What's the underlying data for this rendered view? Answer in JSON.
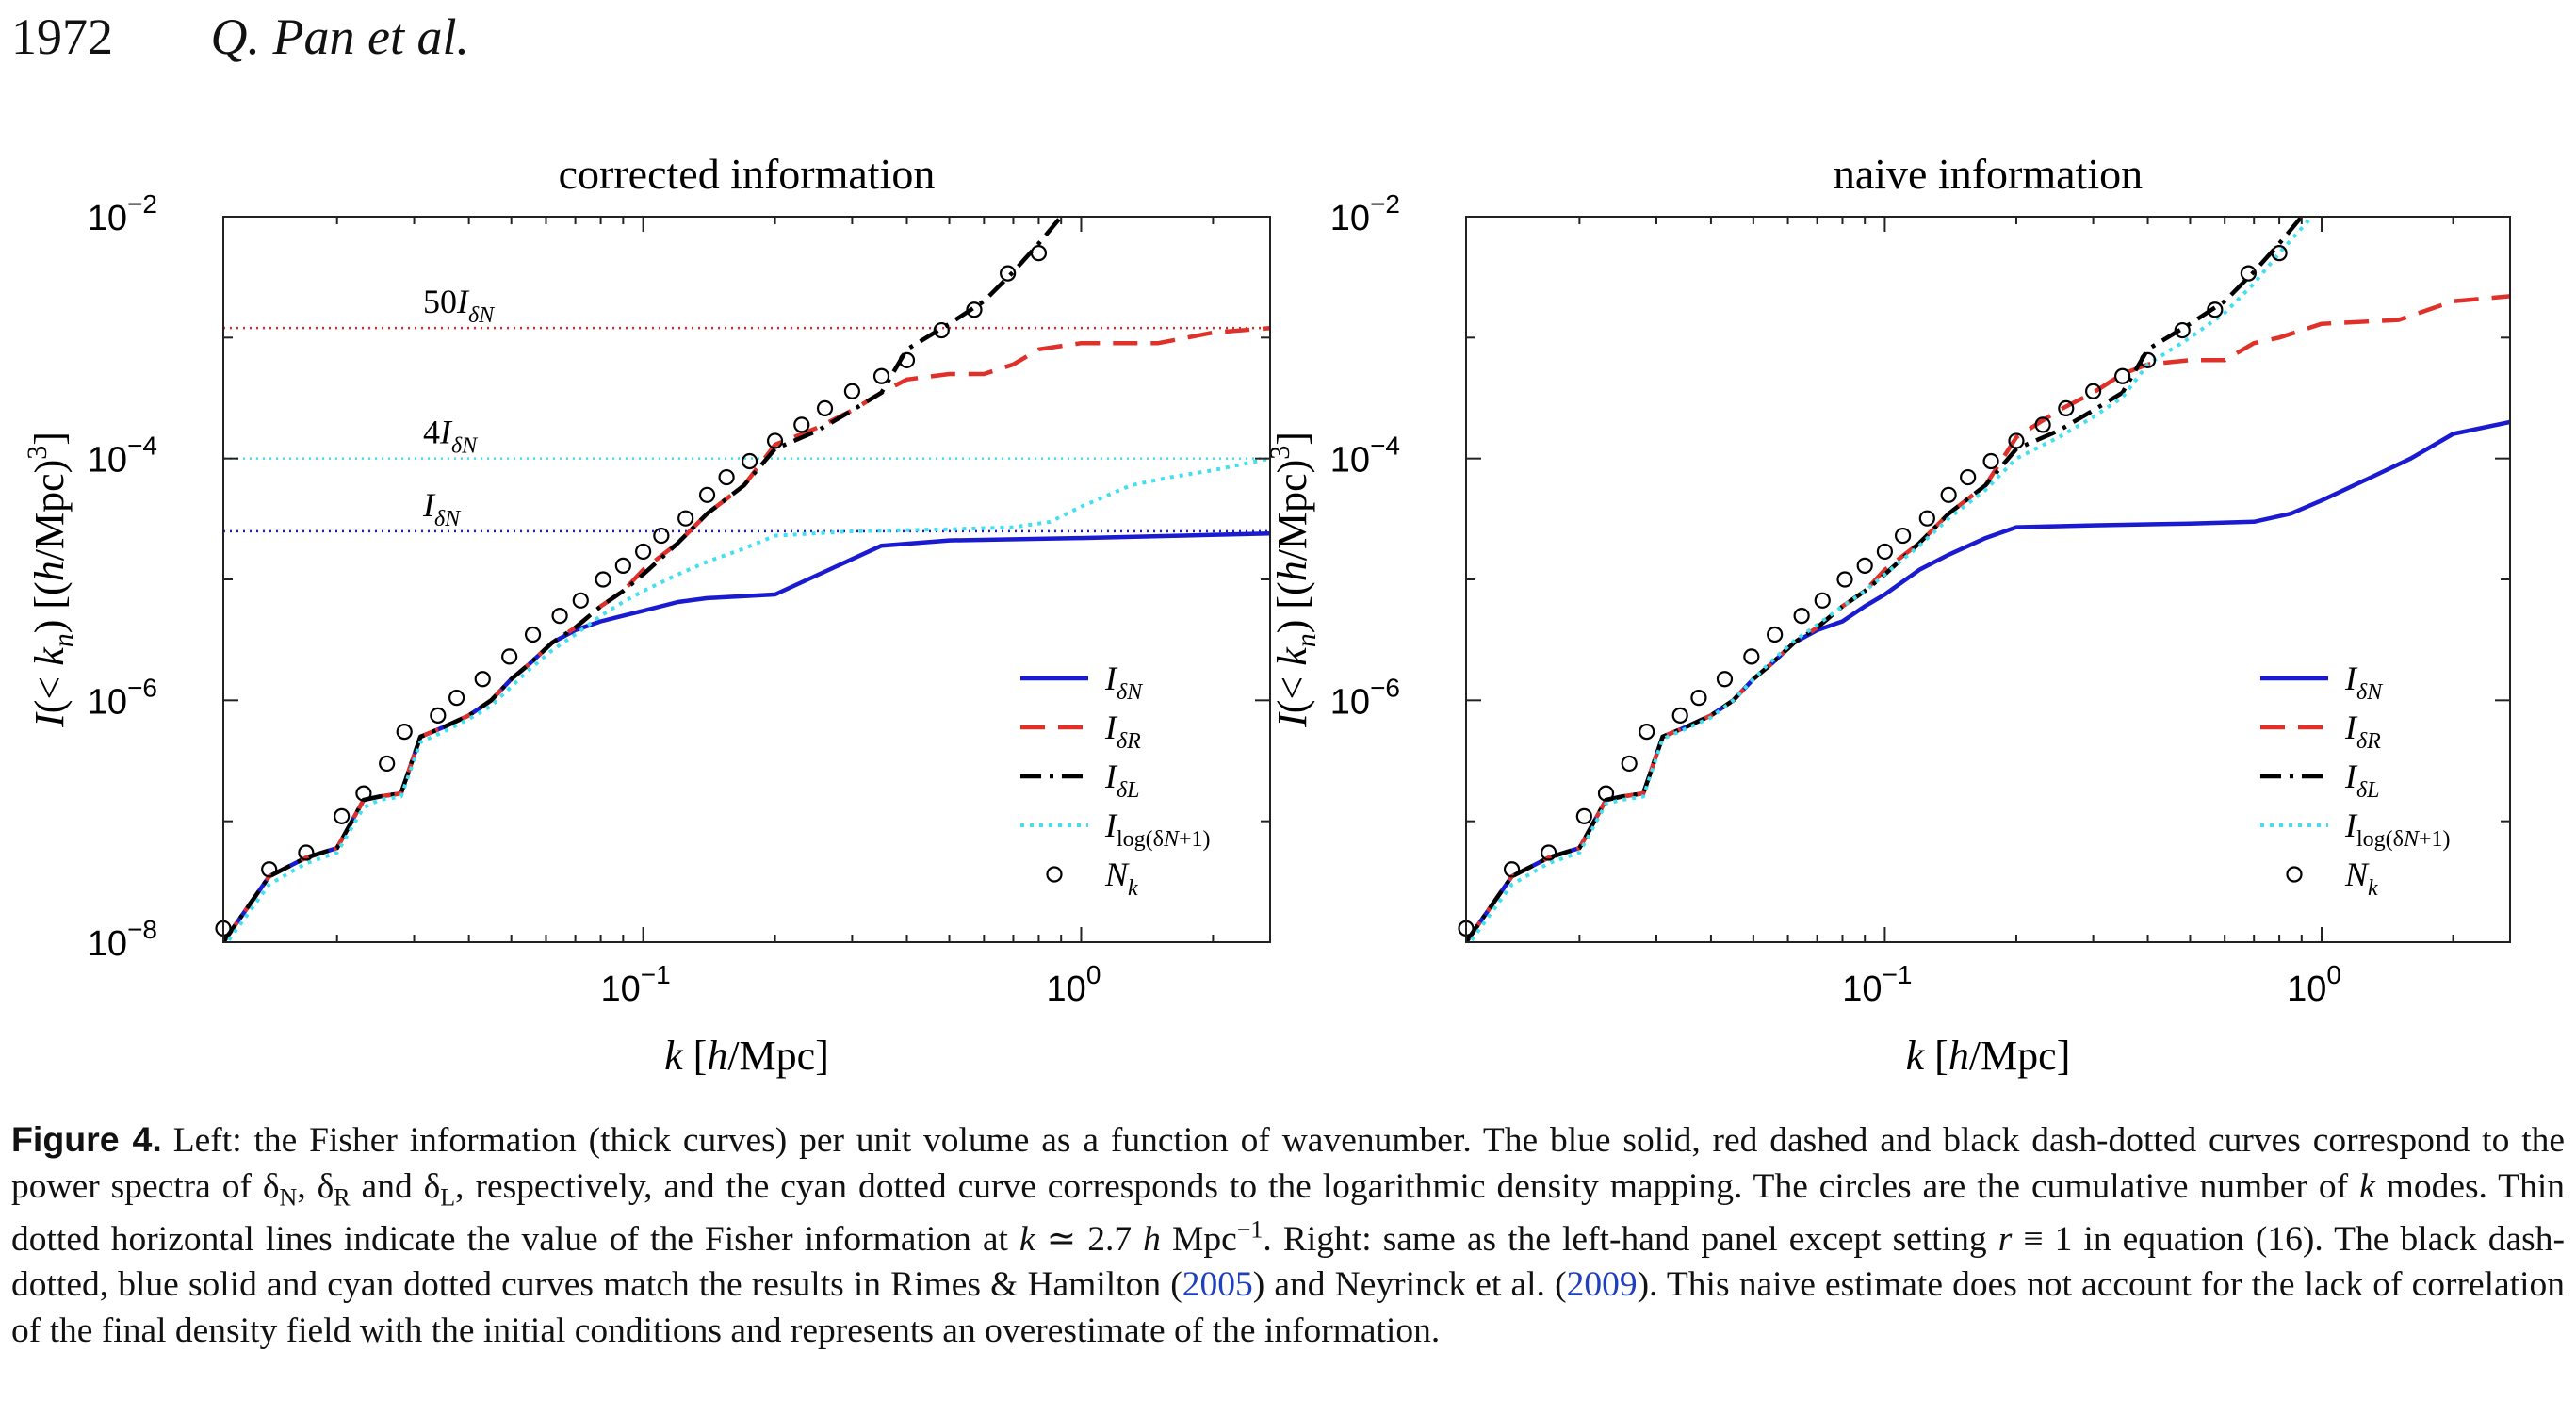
{
  "header": {
    "page_number": "1972",
    "running_head": "Q. Pan et al."
  },
  "figure": {
    "label": "Figure 4.",
    "caption_parts": [
      {
        "t": "Left: the Fisher information (thick curves) per unit volume as a function of wavenumber. The blue solid, red dashed and black dash-dotted curves correspond to the power spectra of δ"
      },
      {
        "t": "N",
        "sub": true
      },
      {
        "t": ", δ"
      },
      {
        "t": "R",
        "sub": true
      },
      {
        "t": " and δ"
      },
      {
        "t": "L",
        "sub": true
      },
      {
        "t": ", respectively, and the cyan dotted curve corresponds to the logarithmic density mapping. The circles are the cumulative number of "
      },
      {
        "t": "k",
        "it": true
      },
      {
        "t": " modes. Thin dotted horizontal lines indicate the value of the Fisher information at "
      },
      {
        "t": "k",
        "it": true
      },
      {
        "t": " ≃ 2.7 "
      },
      {
        "t": "h",
        "it": true
      },
      {
        "t": " Mpc"
      },
      {
        "t": "−1",
        "sup": true
      },
      {
        "t": ". Right: same as the left-hand panel except setting "
      },
      {
        "t": "r",
        "it": true
      },
      {
        "t": " ≡ 1 in equation (16). The black dash-dotted, blue solid and cyan dotted curves match the results in Rimes & Hamilton ("
      },
      {
        "t": "2005",
        "link": true
      },
      {
        "t": ") and Neyrinck et al. ("
      },
      {
        "t": "2009",
        "link": true
      },
      {
        "t": "). This naive estimate does not account for the lack of correlation of the final density field with the initial conditions and represents an overestimate of the information."
      }
    ]
  },
  "chart_data": [
    {
      "type": "line",
      "title": "corrected information",
      "xlabel": "k   [h/Mpc]",
      "ylabel": "I(< k_n)   [(h/Mpc)^3]",
      "x_scale": "log",
      "y_scale": "log",
      "xlim": [
        0.011,
        2.7
      ],
      "ylim": [
        1e-08,
        0.01
      ],
      "x_ticks": [
        "10^-1",
        "10^0"
      ],
      "y_ticks": [
        "10^-8",
        "10^-6",
        "10^-4",
        "10^-2"
      ],
      "legend_position": "lower-right",
      "hlines": [
        {
          "label": "50I_δN",
          "y": 0.0012,
          "color": "#d22b2b"
        },
        {
          "label": "4I_δN",
          "y": 0.0001,
          "color": "#40e0f0"
        },
        {
          "label": "I_δN",
          "y": 2.5e-05,
          "color": "#1a1ad0"
        }
      ],
      "series": [
        {
          "name": "I_δN",
          "style": "solid",
          "color": "#1a1ad0",
          "x": [
            0.011,
            0.014,
            0.017,
            0.02,
            0.023,
            0.025,
            0.028,
            0.031,
            0.035,
            0.04,
            0.045,
            0.05,
            0.055,
            0.062,
            0.07,
            0.08,
            0.09,
            0.1,
            0.12,
            0.14,
            0.2,
            0.35,
            0.5,
            1.0,
            2.7
          ],
          "y": [
            1e-08,
            3.5e-08,
            5e-08,
            6e-08,
            1.5e-07,
            1.6e-07,
            1.7e-07,
            5e-07,
            6e-07,
            7.5e-07,
            1e-06,
            1.5e-06,
            2e-06,
            3e-06,
            3.8e-06,
            4.5e-06,
            5e-06,
            5.5e-06,
            6.5e-06,
            7e-06,
            7.5e-06,
            1.9e-05,
            2.1e-05,
            2.2e-05,
            2.4e-05
          ]
        },
        {
          "name": "I_δR",
          "style": "dashed",
          "color": "#e0302a",
          "x": [
            0.011,
            0.014,
            0.017,
            0.02,
            0.023,
            0.025,
            0.028,
            0.031,
            0.035,
            0.04,
            0.045,
            0.05,
            0.055,
            0.062,
            0.07,
            0.08,
            0.09,
            0.1,
            0.12,
            0.14,
            0.17,
            0.2,
            0.25,
            0.3,
            0.35,
            0.4,
            0.5,
            0.6,
            0.7,
            0.8,
            1.0,
            1.5,
            2.0,
            2.7
          ],
          "y": [
            1e-08,
            3.5e-08,
            5e-08,
            6e-08,
            1.5e-07,
            1.6e-07,
            1.7e-07,
            5e-07,
            6e-07,
            7.5e-07,
            1e-06,
            1.5e-06,
            2e-06,
            3e-06,
            4e-06,
            6e-06,
            8e-06,
            1.2e-05,
            2e-05,
            3.5e-05,
            6e-05,
            0.00013,
            0.00018,
            0.00025,
            0.00035,
            0.00045,
            0.0005,
            0.0005,
            0.0006,
            0.0008,
            0.0009,
            0.0009,
            0.0011,
            0.0012
          ]
        },
        {
          "name": "I_δL",
          "style": "dashdot",
          "color": "#000000",
          "x": [
            0.011,
            0.014,
            0.017,
            0.02,
            0.023,
            0.025,
            0.028,
            0.031,
            0.035,
            0.04,
            0.045,
            0.05,
            0.055,
            0.062,
            0.07,
            0.08,
            0.09,
            0.1,
            0.12,
            0.14,
            0.17,
            0.2,
            0.25,
            0.3,
            0.35,
            0.4,
            0.5,
            0.6,
            0.7,
            0.8,
            0.9
          ],
          "y": [
            1e-08,
            3.5e-08,
            5e-08,
            6e-08,
            1.5e-07,
            1.6e-07,
            1.7e-07,
            5e-07,
            6e-07,
            7.5e-07,
            1e-06,
            1.5e-06,
            2e-06,
            3e-06,
            4e-06,
            6e-06,
            8e-06,
            1.1e-05,
            2e-05,
            3.5e-05,
            6e-05,
            0.00012,
            0.00017,
            0.00025,
            0.00035,
            0.0008,
            0.0013,
            0.002,
            0.0035,
            0.006,
            0.01
          ]
        },
        {
          "name": "I_log(δN+1)",
          "style": "dotted",
          "color": "#40e0f0",
          "x": [
            0.011,
            0.014,
            0.017,
            0.02,
            0.023,
            0.025,
            0.028,
            0.031,
            0.035,
            0.04,
            0.045,
            0.05,
            0.055,
            0.062,
            0.07,
            0.08,
            0.09,
            0.1,
            0.12,
            0.14,
            0.17,
            0.2,
            0.3,
            0.5,
            0.7,
            0.85,
            1.0,
            1.3,
            1.6,
            2.0,
            2.7
          ],
          "y": [
            9e-09,
            3e-08,
            4.5e-08,
            5.5e-08,
            1.3e-07,
            1.5e-07,
            1.6e-07,
            4.5e-07,
            5.5e-07,
            7e-07,
            9e-07,
            1.3e-06,
            1.8e-06,
            2.6e-06,
            3.5e-06,
            5e-06,
            6.5e-06,
            8e-06,
            1.1e-05,
            1.4e-05,
            1.8e-05,
            2.3e-05,
            2.5e-05,
            2.6e-05,
            2.7e-05,
            3e-05,
            4e-05,
            6e-05,
            7e-05,
            8e-05,
            0.0001
          ]
        },
        {
          "name": "N_k",
          "style": "circles",
          "color": "#000000",
          "x": [
            0.011,
            0.014,
            0.017,
            0.0205,
            0.023,
            0.026,
            0.0285,
            0.034,
            0.0375,
            0.043,
            0.0495,
            0.056,
            0.0645,
            0.072,
            0.081,
            0.09,
            0.1,
            0.11,
            0.125,
            0.14,
            0.155,
            0.175,
            0.2,
            0.23,
            0.26,
            0.3,
            0.35,
            0.4,
            0.48,
            0.57,
            0.68,
            0.8
          ],
          "y": [
            1.3e-08,
            4e-08,
            5.5e-08,
            1.1e-07,
            1.7e-07,
            3e-07,
            5.5e-07,
            7.5e-07,
            1.05e-06,
            1.5e-06,
            2.3e-06,
            3.5e-06,
            5e-06,
            6.7e-06,
            1e-05,
            1.3e-05,
            1.7e-05,
            2.3e-05,
            3.2e-05,
            5e-05,
            7e-05,
            9.5e-05,
            0.00014,
            0.00019,
            0.00026,
            0.00036,
            0.00048,
            0.00065,
            0.00115,
            0.0017,
            0.0034,
            0.005
          ]
        }
      ]
    },
    {
      "type": "line",
      "title": "naive information",
      "xlabel": "k   [h/Mpc]",
      "ylabel": "I(< k_n)   [(h/Mpc)^3]",
      "x_scale": "log",
      "y_scale": "log",
      "xlim": [
        0.011,
        2.7
      ],
      "ylim": [
        1e-08,
        0.01
      ],
      "x_ticks": [
        "10^-1",
        "10^0"
      ],
      "y_ticks": [
        "10^-6",
        "10^-4",
        "10^-2"
      ],
      "legend_position": "lower-right",
      "hlines": [],
      "series": [
        {
          "name": "I_δN",
          "style": "solid",
          "color": "#1a1ad0",
          "x": [
            0.011,
            0.014,
            0.017,
            0.02,
            0.023,
            0.025,
            0.028,
            0.031,
            0.035,
            0.04,
            0.045,
            0.05,
            0.055,
            0.062,
            0.07,
            0.08,
            0.09,
            0.1,
            0.12,
            0.14,
            0.17,
            0.2,
            0.3,
            0.5,
            0.7,
            0.85,
            1.0,
            1.3,
            1.6,
            2.0,
            2.7
          ],
          "y": [
            1e-08,
            3.5e-08,
            5e-08,
            6e-08,
            1.5e-07,
            1.6e-07,
            1.7e-07,
            5e-07,
            6e-07,
            7.5e-07,
            1e-06,
            1.5e-06,
            2e-06,
            3e-06,
            3.8e-06,
            4.5e-06,
            6e-06,
            7.5e-06,
            1.2e-05,
            1.6e-05,
            2.2e-05,
            2.7e-05,
            2.8e-05,
            2.9e-05,
            3e-05,
            3.5e-05,
            4.5e-05,
            7e-05,
            0.0001,
            0.00016,
            0.0002
          ]
        },
        {
          "name": "I_δR",
          "style": "dashed",
          "color": "#e0302a",
          "x": [
            0.011,
            0.014,
            0.017,
            0.02,
            0.023,
            0.025,
            0.028,
            0.031,
            0.035,
            0.04,
            0.045,
            0.05,
            0.055,
            0.062,
            0.07,
            0.08,
            0.09,
            0.1,
            0.12,
            0.14,
            0.17,
            0.2,
            0.25,
            0.3,
            0.35,
            0.4,
            0.5,
            0.6,
            0.7,
            0.8,
            1.0,
            1.5,
            2.0,
            2.7
          ],
          "y": [
            1e-08,
            3.5e-08,
            5e-08,
            6e-08,
            1.5e-07,
            1.6e-07,
            1.7e-07,
            5e-07,
            6e-07,
            7.5e-07,
            1e-06,
            1.5e-06,
            2e-06,
            3e-06,
            4e-06,
            6e-06,
            8e-06,
            1.2e-05,
            2e-05,
            3.5e-05,
            6e-05,
            0.00015,
            0.00025,
            0.00035,
            0.0005,
            0.0006,
            0.00065,
            0.00065,
            0.0009,
            0.001,
            0.0013,
            0.0014,
            0.002,
            0.0022
          ]
        },
        {
          "name": "I_δL",
          "style": "dashdot",
          "color": "#000000",
          "x": [
            0.011,
            0.014,
            0.017,
            0.02,
            0.023,
            0.025,
            0.028,
            0.031,
            0.035,
            0.04,
            0.045,
            0.05,
            0.055,
            0.062,
            0.07,
            0.08,
            0.09,
            0.1,
            0.12,
            0.14,
            0.17,
            0.2,
            0.25,
            0.3,
            0.35,
            0.4,
            0.5,
            0.6,
            0.7,
            0.8,
            0.9
          ],
          "y": [
            1e-08,
            3.5e-08,
            5e-08,
            6e-08,
            1.5e-07,
            1.6e-07,
            1.7e-07,
            5e-07,
            6e-07,
            7.5e-07,
            1e-06,
            1.5e-06,
            2e-06,
            3e-06,
            4e-06,
            6e-06,
            8e-06,
            1.1e-05,
            2e-05,
            3.5e-05,
            6e-05,
            0.00012,
            0.00017,
            0.00025,
            0.00035,
            0.0008,
            0.0013,
            0.002,
            0.0035,
            0.006,
            0.01
          ]
        },
        {
          "name": "I_log(δN+1)",
          "style": "dotted",
          "color": "#40e0f0",
          "x": [
            0.011,
            0.014,
            0.017,
            0.02,
            0.023,
            0.025,
            0.028,
            0.031,
            0.035,
            0.04,
            0.045,
            0.05,
            0.055,
            0.062,
            0.07,
            0.08,
            0.09,
            0.1,
            0.12,
            0.14,
            0.17,
            0.2,
            0.25,
            0.3,
            0.35,
            0.4,
            0.5,
            0.6,
            0.7,
            0.8,
            0.95
          ],
          "y": [
            9e-09,
            3e-08,
            4.5e-08,
            5.5e-08,
            1.4e-07,
            1.5e-07,
            1.6e-07,
            4.8e-07,
            5.8e-07,
            7.2e-07,
            1e-06,
            1.5e-06,
            2.1e-06,
            3.1e-06,
            4.2e-06,
            6e-06,
            8e-06,
            1.1e-05,
            1.9e-05,
            3.2e-05,
            5.5e-05,
            0.0001,
            0.00015,
            0.00022,
            0.00032,
            0.0006,
            0.001,
            0.0016,
            0.0028,
            0.005,
            0.01
          ]
        },
        {
          "name": "N_k",
          "style": "circles",
          "color": "#000000",
          "x": [
            0.011,
            0.014,
            0.017,
            0.0205,
            0.023,
            0.026,
            0.0285,
            0.034,
            0.0375,
            0.043,
            0.0495,
            0.056,
            0.0645,
            0.072,
            0.081,
            0.09,
            0.1,
            0.11,
            0.125,
            0.14,
            0.155,
            0.175,
            0.2,
            0.23,
            0.26,
            0.3,
            0.35,
            0.4,
            0.48,
            0.57,
            0.68,
            0.8
          ],
          "y": [
            1.3e-08,
            4e-08,
            5.5e-08,
            1.1e-07,
            1.7e-07,
            3e-07,
            5.5e-07,
            7.5e-07,
            1.05e-06,
            1.5e-06,
            2.3e-06,
            3.5e-06,
            5e-06,
            6.7e-06,
            1e-05,
            1.3e-05,
            1.7e-05,
            2.3e-05,
            3.2e-05,
            5e-05,
            7e-05,
            9.5e-05,
            0.00014,
            0.00019,
            0.00026,
            0.00036,
            0.00048,
            0.00065,
            0.00115,
            0.0017,
            0.0034,
            0.005
          ]
        }
      ]
    }
  ]
}
